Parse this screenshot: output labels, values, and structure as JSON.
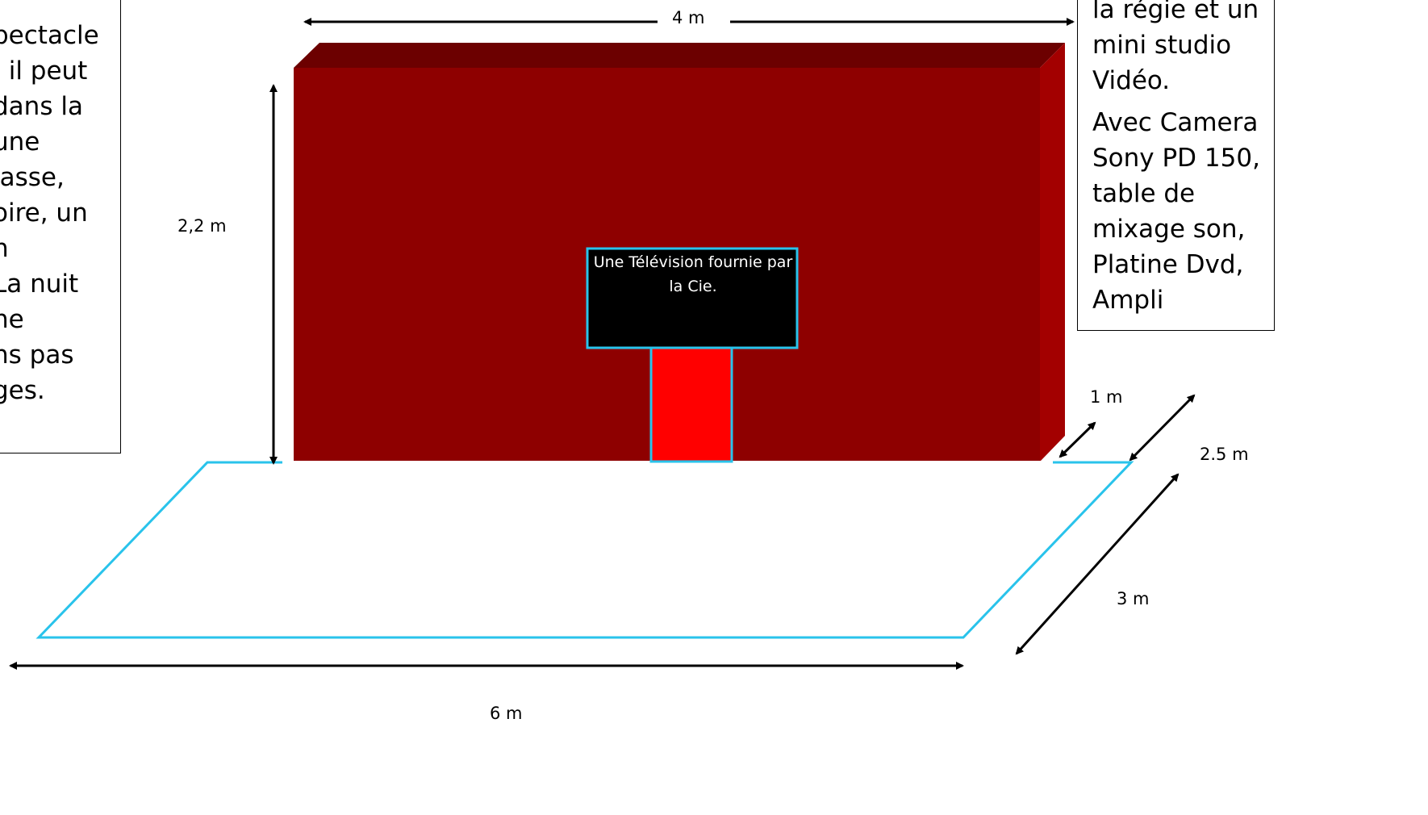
{
  "left_text": {
    "lines": [
      "pectacle",
      ", il peut",
      "dans la",
      "une",
      "lasse,",
      "oire, un",
      "n",
      "La nuit",
      "ne",
      "ns pas",
      "ges."
    ]
  },
  "right_text": {
    "paragraphs": [
      {
        "lines": [
          "la régie et un",
          "mini studio",
          "Vidéo."
        ]
      },
      {
        "lines": [
          "Avec Camera",
          "Sony PD 150,",
          "table de",
          "mixage son,",
          "Platine Dvd,",
          "Ampli"
        ]
      }
    ]
  },
  "dimensions": {
    "width_top": "4 m",
    "height": "2,2 m",
    "depth_side": "1  m",
    "depth_total": "2.5  m",
    "depth_floor": "3  m",
    "width_floor": "6  m"
  },
  "tv_label": "Une Télévision fournie par la Cie.",
  "colors": {
    "wall_front": "#8e0000",
    "wall_top": "#6c0000",
    "wall_side": "#a30000",
    "stand": "#ff0000",
    "screen": "#000000",
    "outline": "#29c3eb"
  }
}
